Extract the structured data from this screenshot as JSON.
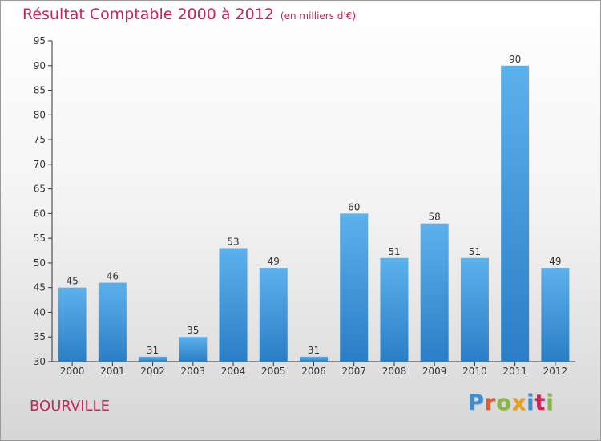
{
  "title": "Résultat Comptable 2000 à 2012",
  "unit_label": "(en milliers d'€)",
  "commune": "BOURVILLE",
  "logo": {
    "letters": [
      {
        "char": "P",
        "color": "#3a8fd6"
      },
      {
        "char": "r",
        "color": "#e8572a"
      },
      {
        "char": "o",
        "color": "#86b83c"
      },
      {
        "char": "x",
        "color": "#e8a21a"
      },
      {
        "char": "i",
        "color": "#3a8fd6"
      },
      {
        "char": "t",
        "color": "#c8245a"
      },
      {
        "char": "i",
        "color": "#86b83c"
      }
    ]
  },
  "colors": {
    "title": "#c8245a",
    "bar_top": "#5cb1ec",
    "bar_bottom": "#2a7ec6",
    "axis": "#333333"
  },
  "chart_data": {
    "type": "bar",
    "categories": [
      "2000",
      "2001",
      "2002",
      "2003",
      "2004",
      "2005",
      "2006",
      "2007",
      "2008",
      "2009",
      "2010",
      "2011",
      "2012"
    ],
    "values": [
      45,
      46,
      31,
      35,
      53,
      49,
      31,
      60,
      51,
      58,
      51,
      90,
      49
    ],
    "ylim": [
      30,
      95
    ],
    "yticks": [
      30,
      35,
      40,
      45,
      50,
      55,
      60,
      65,
      70,
      75,
      80,
      85,
      90,
      95
    ],
    "grid": false,
    "xlabel": "",
    "ylabel": ""
  }
}
